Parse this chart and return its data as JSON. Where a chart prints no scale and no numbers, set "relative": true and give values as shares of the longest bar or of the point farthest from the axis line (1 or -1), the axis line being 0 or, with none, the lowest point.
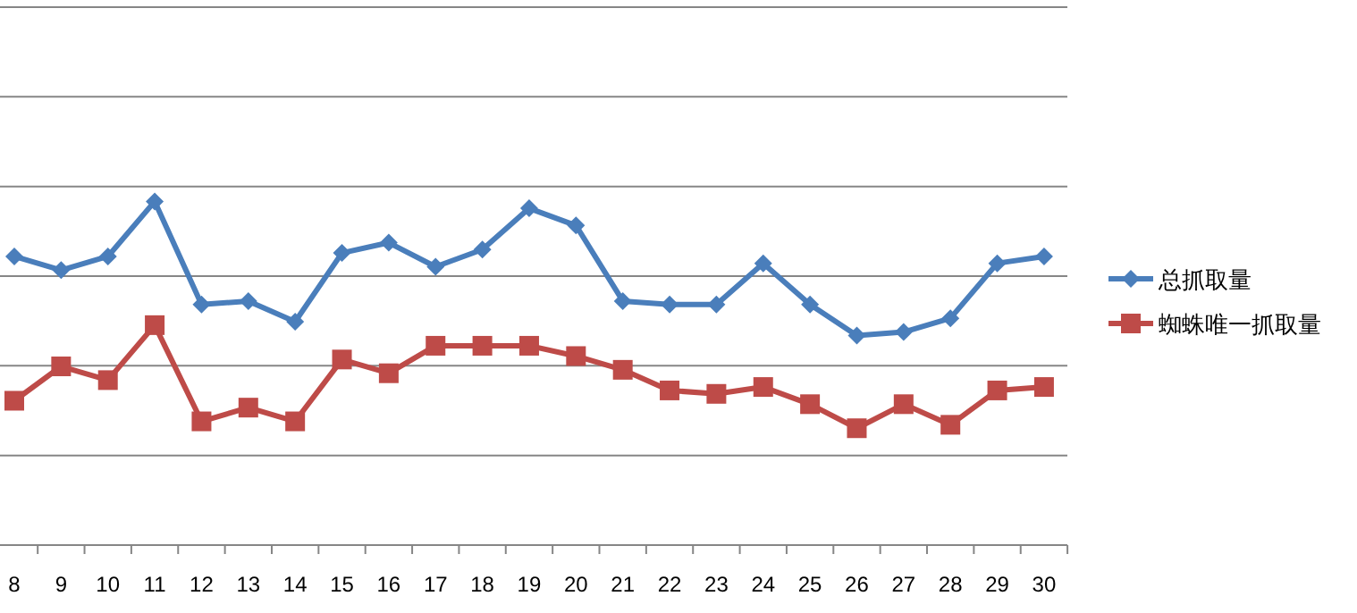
{
  "chart_data": {
    "type": "line",
    "relative": true,
    "grid": "y",
    "legend": "right",
    "categories": [
      "8",
      "9",
      "10",
      "11",
      "12",
      "13",
      "14",
      "15",
      "16",
      "17",
      "18",
      "19",
      "20",
      "21",
      "22",
      "23",
      "24",
      "25",
      "26",
      "27",
      "28",
      "29",
      "30"
    ],
    "series": [
      {
        "name": "总抓取量",
        "color": "#4a7ebb",
        "marker": "diamond",
        "values": [
          0.84,
          0.8,
          0.84,
          1,
          0.7,
          0.71,
          0.65,
          0.85,
          0.88,
          0.81,
          0.86,
          0.98,
          0.93,
          0.71,
          0.7,
          0.7,
          0.82,
          0.7,
          0.61,
          0.62,
          0.66,
          0.82,
          0.84
        ]
      },
      {
        "name": "蜘蛛唯一抓取量",
        "color": "#be4b48",
        "marker": "square",
        "values": [
          0.42,
          0.52,
          0.48,
          0.64,
          0.36,
          0.4,
          0.36,
          0.54,
          0.5,
          0.58,
          0.58,
          0.58,
          0.55,
          0.51,
          0.45,
          0.44,
          0.46,
          0.41,
          0.34,
          0.41,
          0.35,
          0.45,
          0.46
        ]
      }
    ]
  }
}
